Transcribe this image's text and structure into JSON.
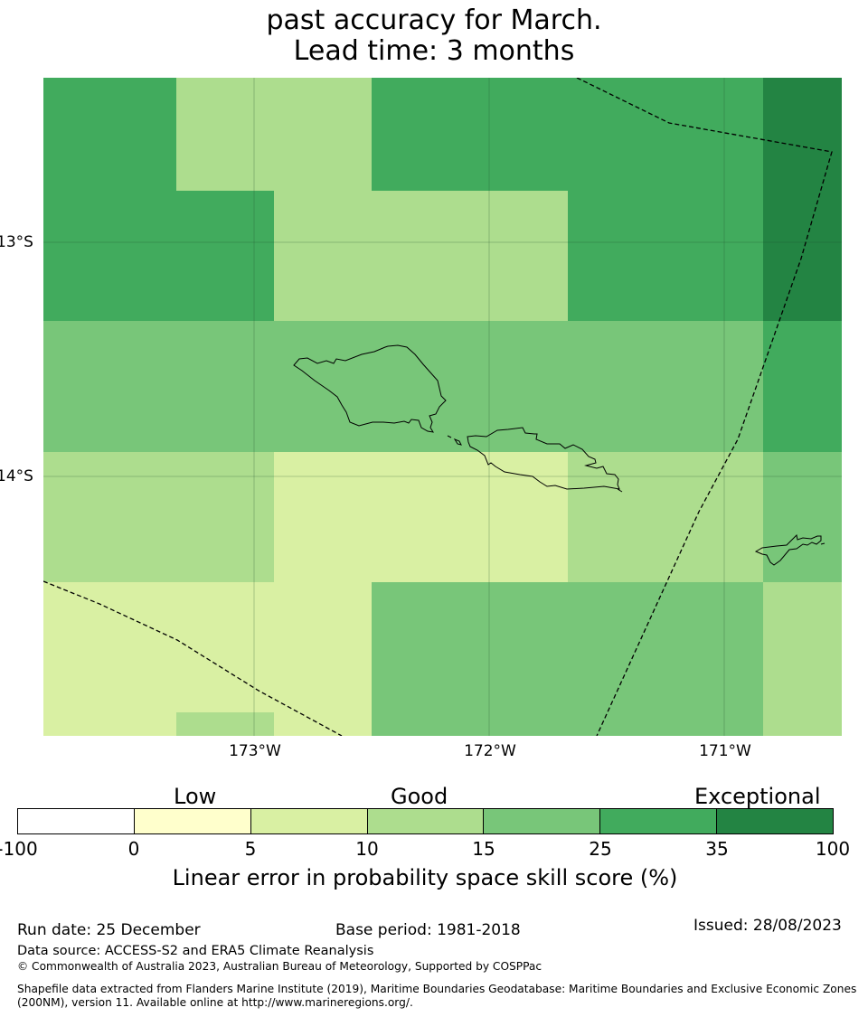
{
  "title": {
    "line1": "past accuracy for March.",
    "line2": "Lead time: 3 months"
  },
  "map": {
    "lat_labels": [
      "13°S",
      "14°S"
    ],
    "lon_labels": [
      "173°W",
      "172°W",
      "171°W"
    ],
    "grid": {
      "rows": [
        [
          "35",
          "15",
          "15",
          "35",
          "35",
          "35",
          "100"
        ],
        [
          "35",
          "35",
          "15",
          "15",
          "35",
          "35",
          "100"
        ],
        [
          "25",
          "25",
          "25",
          "25",
          "25",
          "25",
          "35"
        ],
        [
          "15",
          "15",
          "10",
          "10",
          "15",
          "15",
          "25"
        ],
        [
          "10",
          "10",
          "10",
          "25",
          "25",
          "25",
          "15"
        ],
        [
          "10",
          "15",
          "10",
          "25",
          "25",
          "25",
          "15"
        ]
      ],
      "value_key": "upper bound of skill class (%)"
    }
  },
  "colorbar": {
    "categories": [
      "Low",
      "Good",
      "Exceptional"
    ],
    "ticks": [
      "-100",
      "0",
      "5",
      "10",
      "15",
      "25",
      "35",
      "100"
    ],
    "colors": [
      "#ffffff",
      "#ffffcc",
      "#d9f0a3",
      "#addd8e",
      "#78c679",
      "#41ab5d",
      "#238443"
    ],
    "label": "Linear error in probability space skill score (%)"
  },
  "footer": {
    "run_date": "Run date: 25 December",
    "base_period": "Base period: 1981-2018",
    "issued": "Issued: 28/08/2023",
    "data_source": "Data source: ACCESS-S2 and ERA5 Climate Reanalysis",
    "copyright": "© Commonwealth of Australia 2023, Australian Bureau of Meteorology, Supported by COSPPac",
    "shapefile_line1": "Shapefile data extracted from Flanders Marine Institute (2019), Maritime Boundaries Geodatabase: Maritime Boundaries and Exclusive Economic Zones",
    "shapefile_line2": "(200NM), version 11. Available online at http://www.marineregions.org/."
  }
}
